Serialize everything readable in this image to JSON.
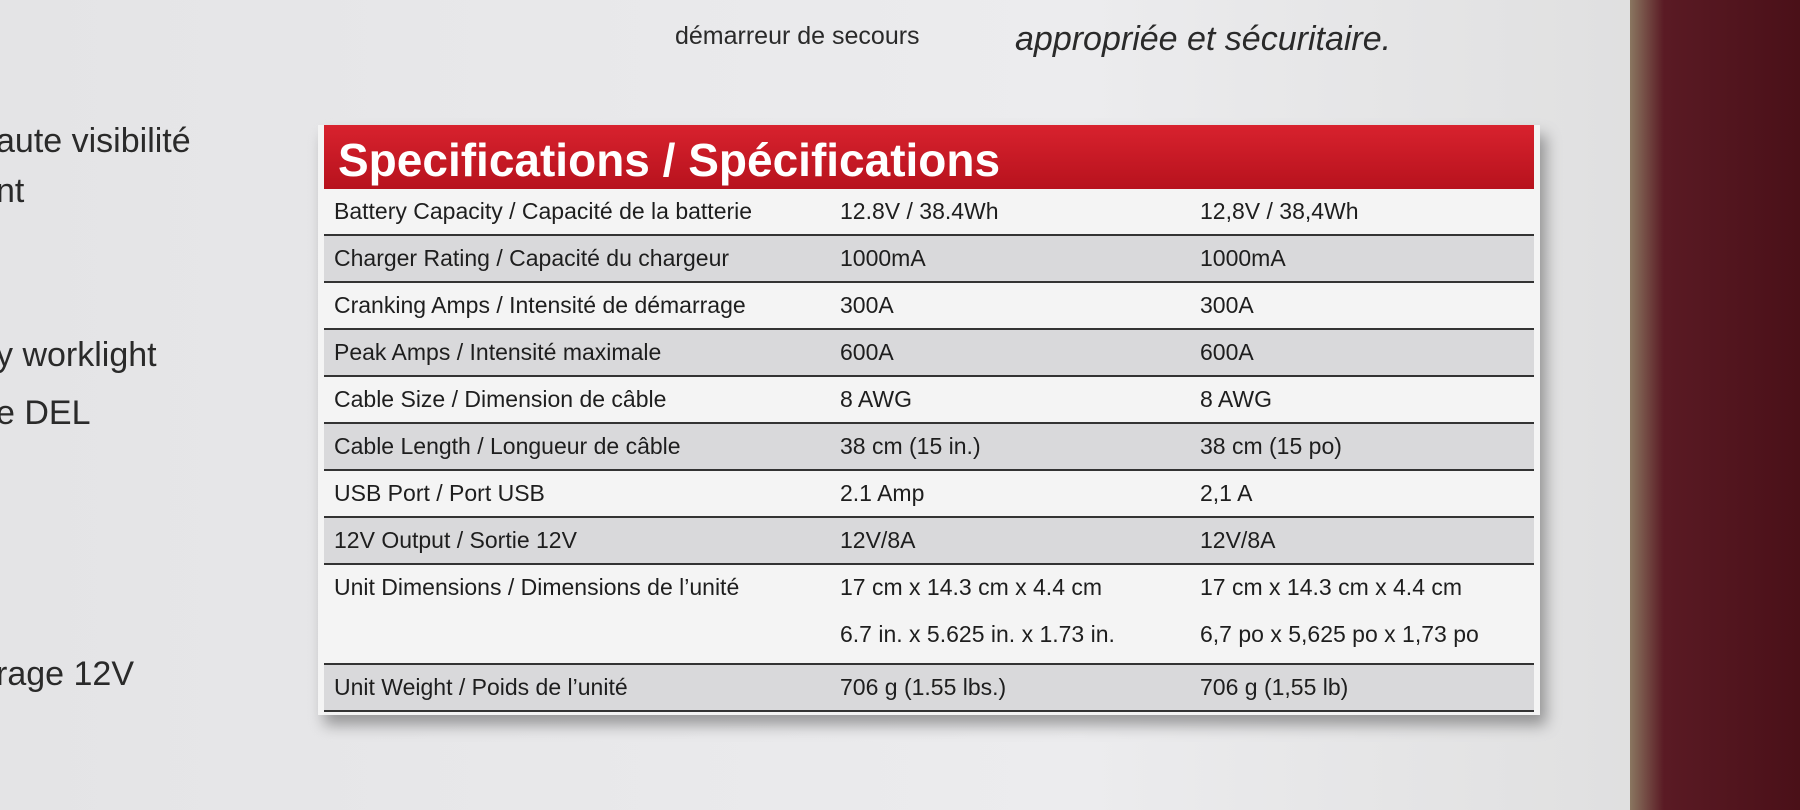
{
  "top": {
    "line1": "démarreur de secours",
    "line2": "appropriée et sécuritaire."
  },
  "side": [
    "aute visibilité",
    "nt",
    "y worklight",
    "e DEL",
    "rage 12V"
  ],
  "table": {
    "title": "Specifications / Spécifications",
    "rows": [
      {
        "label": "Battery Capacity / Capacité de la batterie",
        "en": [
          "12.8V / 38.4Wh"
        ],
        "fr": [
          "12,8V / 38,4Wh"
        ]
      },
      {
        "label": "Charger Rating / Capacité du chargeur",
        "en": [
          "1000mA"
        ],
        "fr": [
          "1000mA"
        ]
      },
      {
        "label": "Cranking Amps / Intensité de démarrage",
        "en": [
          "300A"
        ],
        "fr": [
          "300A"
        ]
      },
      {
        "label": "Peak Amps / Intensité maximale",
        "en": [
          "600A"
        ],
        "fr": [
          "600A"
        ]
      },
      {
        "label": "Cable Size / Dimension de câble",
        "en": [
          "8 AWG"
        ],
        "fr": [
          "8 AWG"
        ]
      },
      {
        "label": "Cable Length / Longueur de câble",
        "en": [
          "38 cm (15 in.)"
        ],
        "fr": [
          "38 cm (15 po)"
        ]
      },
      {
        "label": "USB Port / Port USB",
        "en": [
          "2.1 Amp"
        ],
        "fr": [
          "2,1 A"
        ]
      },
      {
        "label": "12V Output / Sortie 12V",
        "en": [
          "12V/8A"
        ],
        "fr": [
          "12V/8A"
        ]
      },
      {
        "label": "Unit Dimensions / Dimensions de l’unité",
        "en": [
          "17 cm x 14.3 cm x 4.4 cm",
          "6.7 in. x 5.625 in. x 1.73 in."
        ],
        "fr": [
          "17 cm x 14.3 cm x 4.4 cm",
          "6,7 po x 5,625 po x 1,73 po"
        ]
      },
      {
        "label": "Unit Weight / Poids de l’unité",
        "en": [
          "706 g (1.55 lbs.)"
        ],
        "fr": [
          "706 g (1,55 lb)"
        ]
      }
    ]
  }
}
